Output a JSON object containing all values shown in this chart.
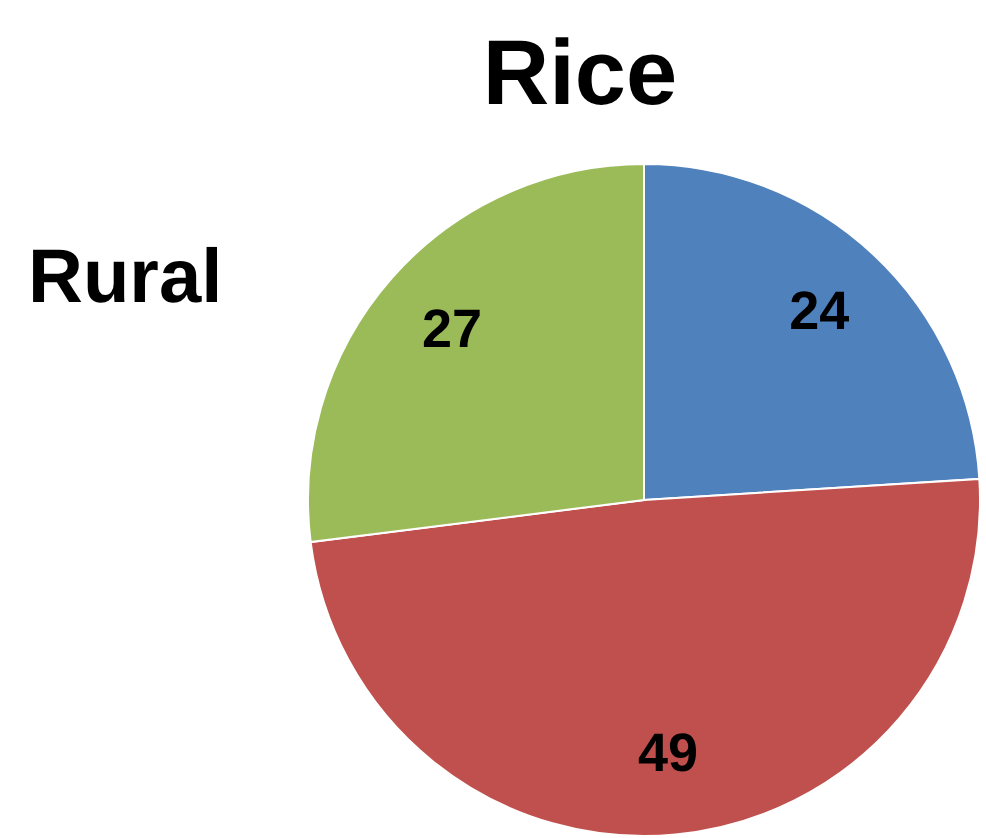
{
  "chart_data": {
    "type": "pie",
    "title": "Rice",
    "annotations": [
      "Rural"
    ],
    "categories": [
      null,
      null,
      null
    ],
    "values": [
      24,
      49,
      27
    ],
    "colors": [
      "#4f81bd",
      "#c0504d",
      "#9bbb59"
    ],
    "data_labels": true
  }
}
